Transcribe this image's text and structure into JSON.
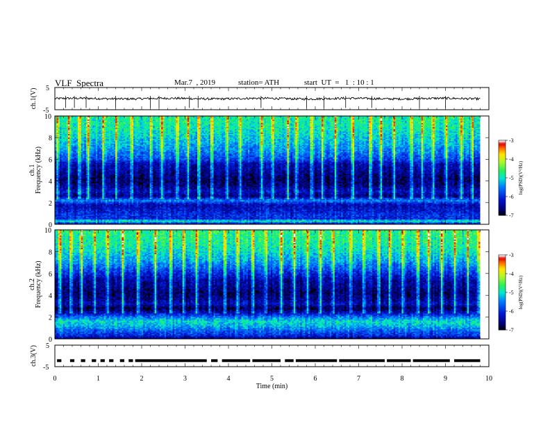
{
  "header": {
    "title": "VLF  Spectra",
    "date": "Mar.7  , 2019",
    "station": "station= ATH",
    "start_ut": "start  UT  =   1  : 10 : 1"
  },
  "chart_data": [
    {
      "type": "line",
      "panel": "ch1",
      "ylabel": "ch.1(V)",
      "yticks": [
        "5",
        "-5"
      ],
      "ylim": [
        -5,
        5
      ],
      "xlim": [
        0,
        10
      ],
      "x_end": 9.8,
      "baseline": 0,
      "noise_amplitude": 0.5,
      "spike_times": [
        0.25,
        0.45,
        0.72,
        1.4,
        2.2,
        2.4,
        3.1,
        3.3,
        4.75,
        5.8,
        6.2,
        6.7,
        7.3,
        8.4,
        9.0
      ],
      "color": "#000000"
    },
    {
      "type": "heatmap",
      "panel": "ch1-spectrogram",
      "ylabel": "Frequency  (kHz)",
      "panel_label": "ch.1",
      "xlim": [
        0,
        10
      ],
      "ylim": [
        0,
        10
      ],
      "x_end": 9.8,
      "yticks": [
        "0",
        "2",
        "4",
        "6",
        "8",
        "10"
      ],
      "colorbar": {
        "label": "log(PSD)(V²/Hz)",
        "ticks": [
          "-3",
          "-4",
          "-5",
          "-6",
          "-7"
        ],
        "range": [
          -7,
          -3
        ]
      },
      "profile_khz": [
        0,
        0.3,
        0.5,
        0.8,
        1.2,
        1.8,
        2.2,
        2.6,
        3.0,
        3.6,
        4.2,
        4.8,
        5.6,
        6.0,
        7.0,
        8.0,
        9.0,
        10.0
      ],
      "profile_logpsd": [
        -6.4,
        -4.8,
        -6.0,
        -5.9,
        -6.1,
        -6.3,
        -5.4,
        -6.6,
        -6.2,
        -6.6,
        -6.7,
        -6.5,
        -6.3,
        -5.8,
        -5.4,
        -5.1,
        -4.9,
        -4.8
      ],
      "sferic_times": [
        0.05,
        0.3,
        0.55,
        0.75,
        1.1,
        1.4,
        1.75,
        2.2,
        2.45,
        2.8,
        3.05,
        3.3,
        3.6,
        3.95,
        4.25,
        4.75,
        5.0,
        5.35,
        5.55,
        5.9,
        6.15,
        6.45,
        6.85,
        7.25,
        7.5,
        7.8,
        8.2,
        8.45,
        8.7,
        9.0,
        9.35,
        9.6
      ]
    },
    {
      "type": "heatmap",
      "panel": "ch2-spectrogram",
      "ylabel": "Frequency  (kHz)",
      "panel_label": "ch.2",
      "xlim": [
        0,
        10
      ],
      "ylim": [
        0,
        10
      ],
      "x_end": 9.8,
      "yticks": [
        "0",
        "2",
        "4",
        "6",
        "8",
        "10"
      ],
      "colorbar": {
        "label": "log(PSD)(V²/Hz)",
        "ticks": [
          "-3",
          "-4",
          "-5",
          "-6",
          "-7"
        ],
        "range": [
          -7,
          -3
        ]
      },
      "profile_khz": [
        0,
        0.3,
        0.8,
        1.2,
        1.6,
        2.0,
        2.4,
        2.8,
        3.2,
        3.6,
        4.2,
        4.8,
        5.4,
        6.0,
        7.0,
        8.0,
        9.0,
        10.0
      ],
      "profile_logpsd": [
        -6.6,
        -6.0,
        -5.6,
        -5.2,
        -5.0,
        -5.5,
        -6.3,
        -6.8,
        -6.3,
        -6.5,
        -6.7,
        -6.5,
        -6.4,
        -6.0,
        -5.4,
        -5.0,
        -4.8,
        -4.7
      ],
      "sferic_times": [
        0.1,
        0.35,
        0.6,
        0.9,
        1.2,
        1.55,
        1.9,
        2.3,
        2.65,
        2.95,
        3.25,
        3.55,
        3.9,
        4.2,
        4.55,
        4.85,
        5.2,
        5.5,
        5.8,
        6.1,
        6.4,
        6.8,
        7.1,
        7.45,
        7.7,
        8.0,
        8.35,
        8.6,
        8.9,
        9.2,
        9.5,
        9.75
      ]
    },
    {
      "type": "scatter",
      "panel": "ch3",
      "ylabel": "ch.3(V)",
      "yticks": [
        "5",
        "-5"
      ],
      "ylim": [
        -5,
        5
      ],
      "xlim": [
        0,
        10
      ],
      "xticks": [
        "0",
        "1",
        "2",
        "3",
        "4",
        "5",
        "6",
        "7",
        "8",
        "9",
        "10"
      ],
      "xlabel": "Time  (min)",
      "level": -2.2,
      "pulse_segments": [
        [
          0.05,
          0.15
        ],
        [
          0.35,
          0.45
        ],
        [
          0.6,
          0.7
        ],
        [
          0.85,
          0.95
        ],
        [
          1.05,
          1.15
        ],
        [
          1.25,
          1.35
        ],
        [
          1.5,
          1.6
        ],
        [
          1.7,
          1.8
        ],
        [
          1.85,
          3.5
        ],
        [
          3.6,
          3.75
        ],
        [
          3.85,
          4.5
        ],
        [
          4.55,
          5.2
        ],
        [
          5.3,
          5.5
        ],
        [
          5.55,
          6.5
        ],
        [
          6.55,
          7.6
        ],
        [
          7.65,
          8.2
        ],
        [
          8.25,
          9.1
        ],
        [
          9.2,
          9.8
        ]
      ]
    }
  ]
}
